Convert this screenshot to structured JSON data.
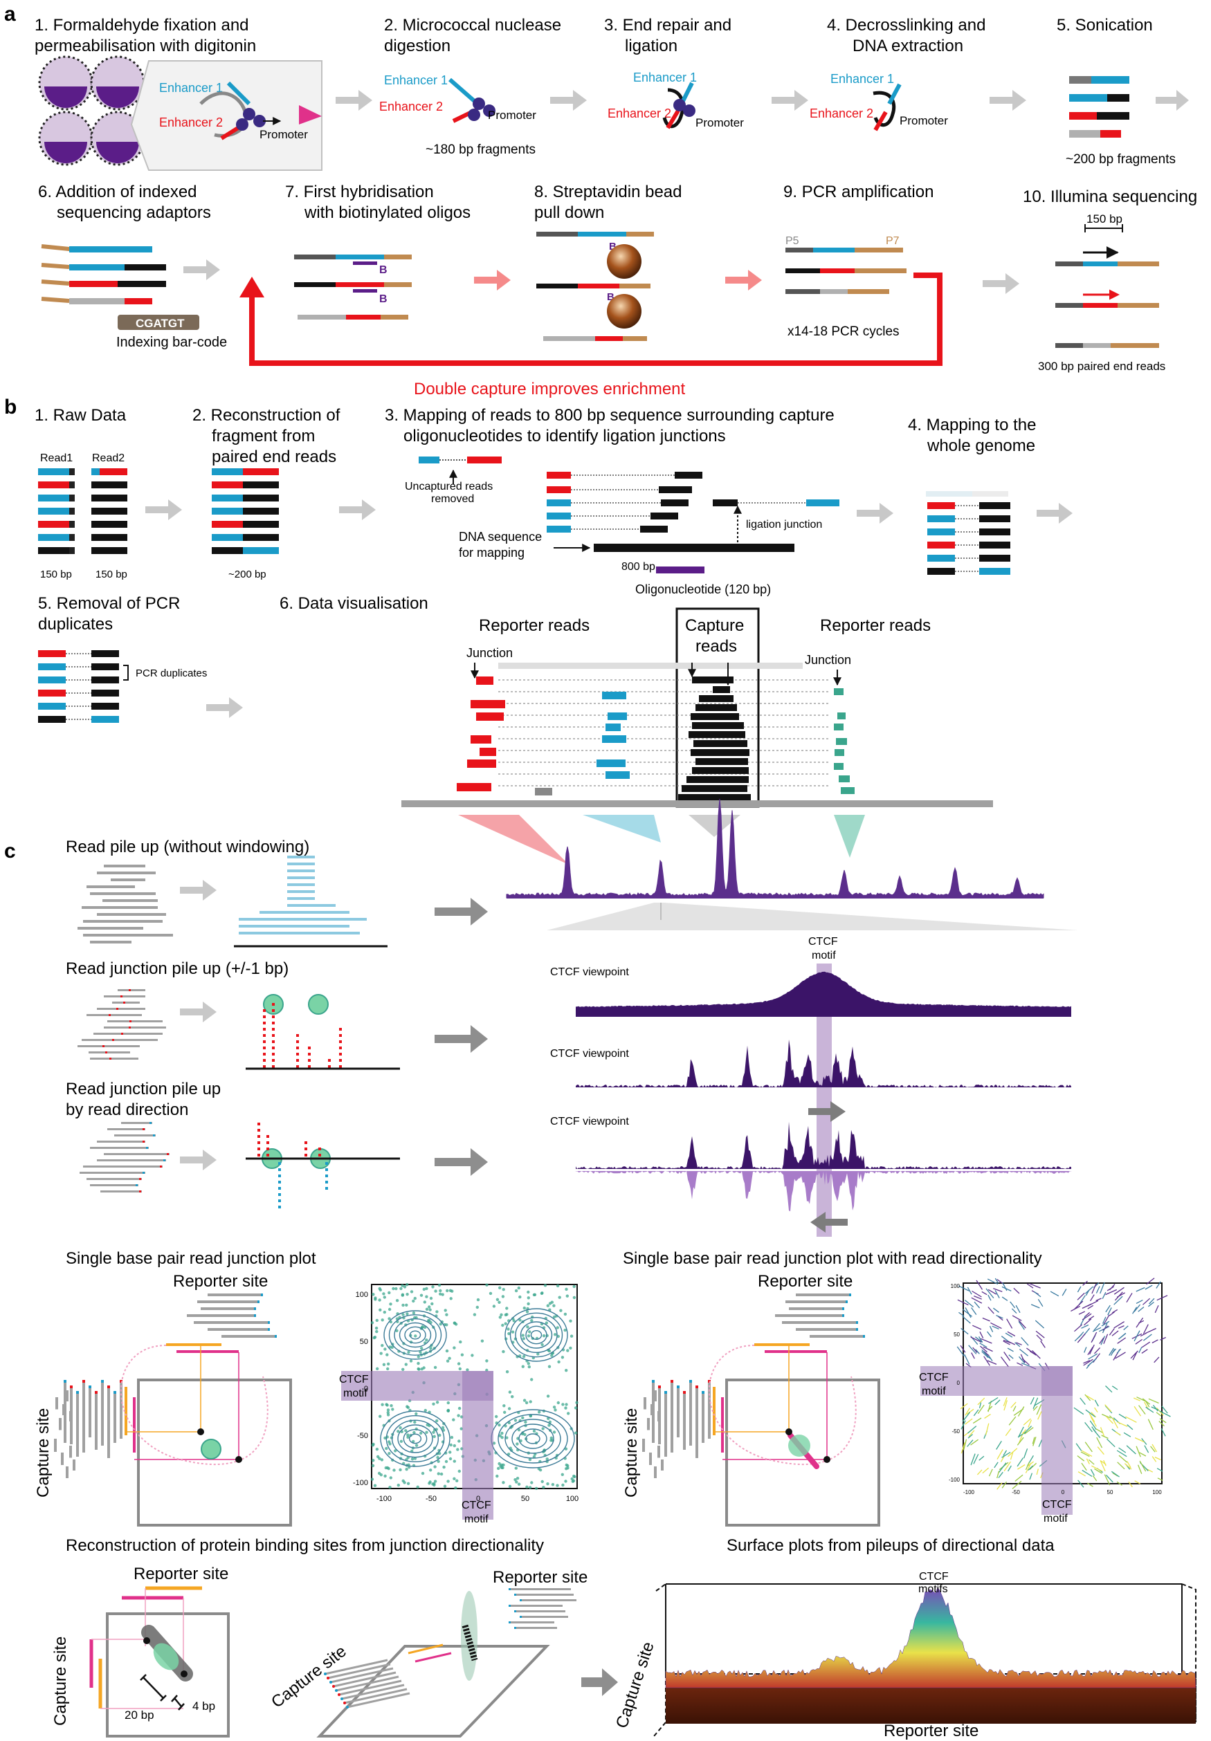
{
  "panel_a": {
    "label": "a",
    "step1": "1. Formaldehyde fixation and",
    "step1b": "permeabilisation with digitonin",
    "step2": "2. Micrococcal nuclease",
    "step2b": "digestion",
    "step3": "3. End repair and",
    "step3b": "ligation",
    "step4": "4. Decrosslinking and",
    "step4b": "DNA extraction",
    "step5": "5. Sonication",
    "step6": "6. Addition of indexed",
    "step6b": "sequencing adaptors",
    "step7": "7. First hybridisation",
    "step7b": "with biotinylated oligos",
    "step8": "8. Streptavidin bead",
    "step8b": "pull down",
    "step9": "9. PCR amplification",
    "step10": "10. Illumina sequencing",
    "enhancer1": "Enhancer 1",
    "enhancer2": "Enhancer 2",
    "promoter": "Promoter",
    "frag180": "~180 bp fragments",
    "frag200": "~200 bp fragments",
    "barcode": "CGATGT",
    "barcode_label": "Indexing bar-code",
    "biotin": "B",
    "p5": "P5",
    "p7": "P7",
    "pcr_cycles": "x14-18 PCR cycles",
    "bp150": "150 bp",
    "paired_end": "300 bp paired end reads",
    "double_capture": "Double capture improves enrichment"
  },
  "panel_b": {
    "label": "b",
    "s1": "1. Raw Data",
    "read1": "Read1",
    "read2": "Read2",
    "bp150a": "150 bp",
    "bp150b": "150 bp",
    "s2": "2. Reconstruction of",
    "s2b": "fragment from",
    "s2c": "paired end reads",
    "bp200": "~200 bp",
    "s3": "3. Mapping of reads to 800 bp sequence surrounding capture",
    "s3b": "oligonucleotides to identify ligation junctions",
    "uncaptured": "Uncaptured reads",
    "removed": "removed",
    "ligation_junction": "ligation junction",
    "dna_seq": "DNA sequence",
    "for_mapping": "for mapping",
    "bp800": "800 bp",
    "oligo": "Oligonucleotide (120 bp)",
    "s4": "4. Mapping to the",
    "s4b": "whole genome",
    "s5": "5. Removal of PCR",
    "s5b": "duplicates",
    "pcr_dup": "PCR duplicates",
    "s6": "6. Data visualisation",
    "reporter_left": "Reporter reads",
    "capture": "Capture",
    "capture_b": "reads",
    "reporter_right": "Reporter reads",
    "junction_left": "Junction",
    "junction_right": "Junction"
  },
  "panel_c": {
    "label": "c",
    "pile1": "Read pile up (without windowing)",
    "pile2": "Read junction pile up (+/-1 bp)",
    "pile3": "Read junction pile up",
    "pile3b": "by read direction",
    "ctcf_motif": "CTCF",
    "ctcf_motif_b": "motif",
    "viewpoint1": "CTCF viewpoint",
    "viewpoint2": "CTCF viewpoint",
    "viewpoint3": "CTCF viewpoint",
    "sbp_title": "Single base pair read junction plot",
    "sbp_dir_title": "Single base pair read junction plot with read directionality",
    "reporter_site_1": "Reporter site",
    "reporter_site_2": "Reporter site",
    "reporter_site_3": "Reporter site",
    "reporter_site_4": "Reporter site",
    "reporter_site_5": "Reporter site",
    "capture_site_1": "Capture site",
    "capture_site_2": "Capture site",
    "capture_site_3": "Capture site",
    "capture_site_4": "Capture site",
    "capture_site_5": "Capture site",
    "ctcf_a": "CTCF",
    "ctcf_a_b": "motif",
    "ctcf_b": "CTCF",
    "ctcf_b_b": "motif",
    "ctcf_c": "CTCF",
    "ctcf_c_b": "motif",
    "ctcf_d": "CTCF",
    "ctcf_d_b": "motif",
    "ticks_y": [
      "100",
      "50",
      "0",
      "-50",
      "-100"
    ],
    "ticks_x": [
      "-100",
      "-50",
      "0",
      "50",
      "100"
    ],
    "reconstruction_title": "Reconstruction of protein binding sites from junction directionality",
    "surface_title": "Surface plots from pileups of directional data",
    "bp20": "20 bp",
    "bp4": "4 bp",
    "ctcf_motifs": "CTCF",
    "ctcf_motifs_b": "motifs"
  },
  "colors": {
    "red": "#e8131a",
    "blue": "#1a9bc8",
    "black": "#111111",
    "grey": "#b0b0b0",
    "arrow_grey": "#c8c8c8",
    "purple": "#4a1f6e",
    "teal": "#3aa58c",
    "pink": "#f0a0a8",
    "magenta": "#e0318a",
    "orange": "#f5a623"
  }
}
